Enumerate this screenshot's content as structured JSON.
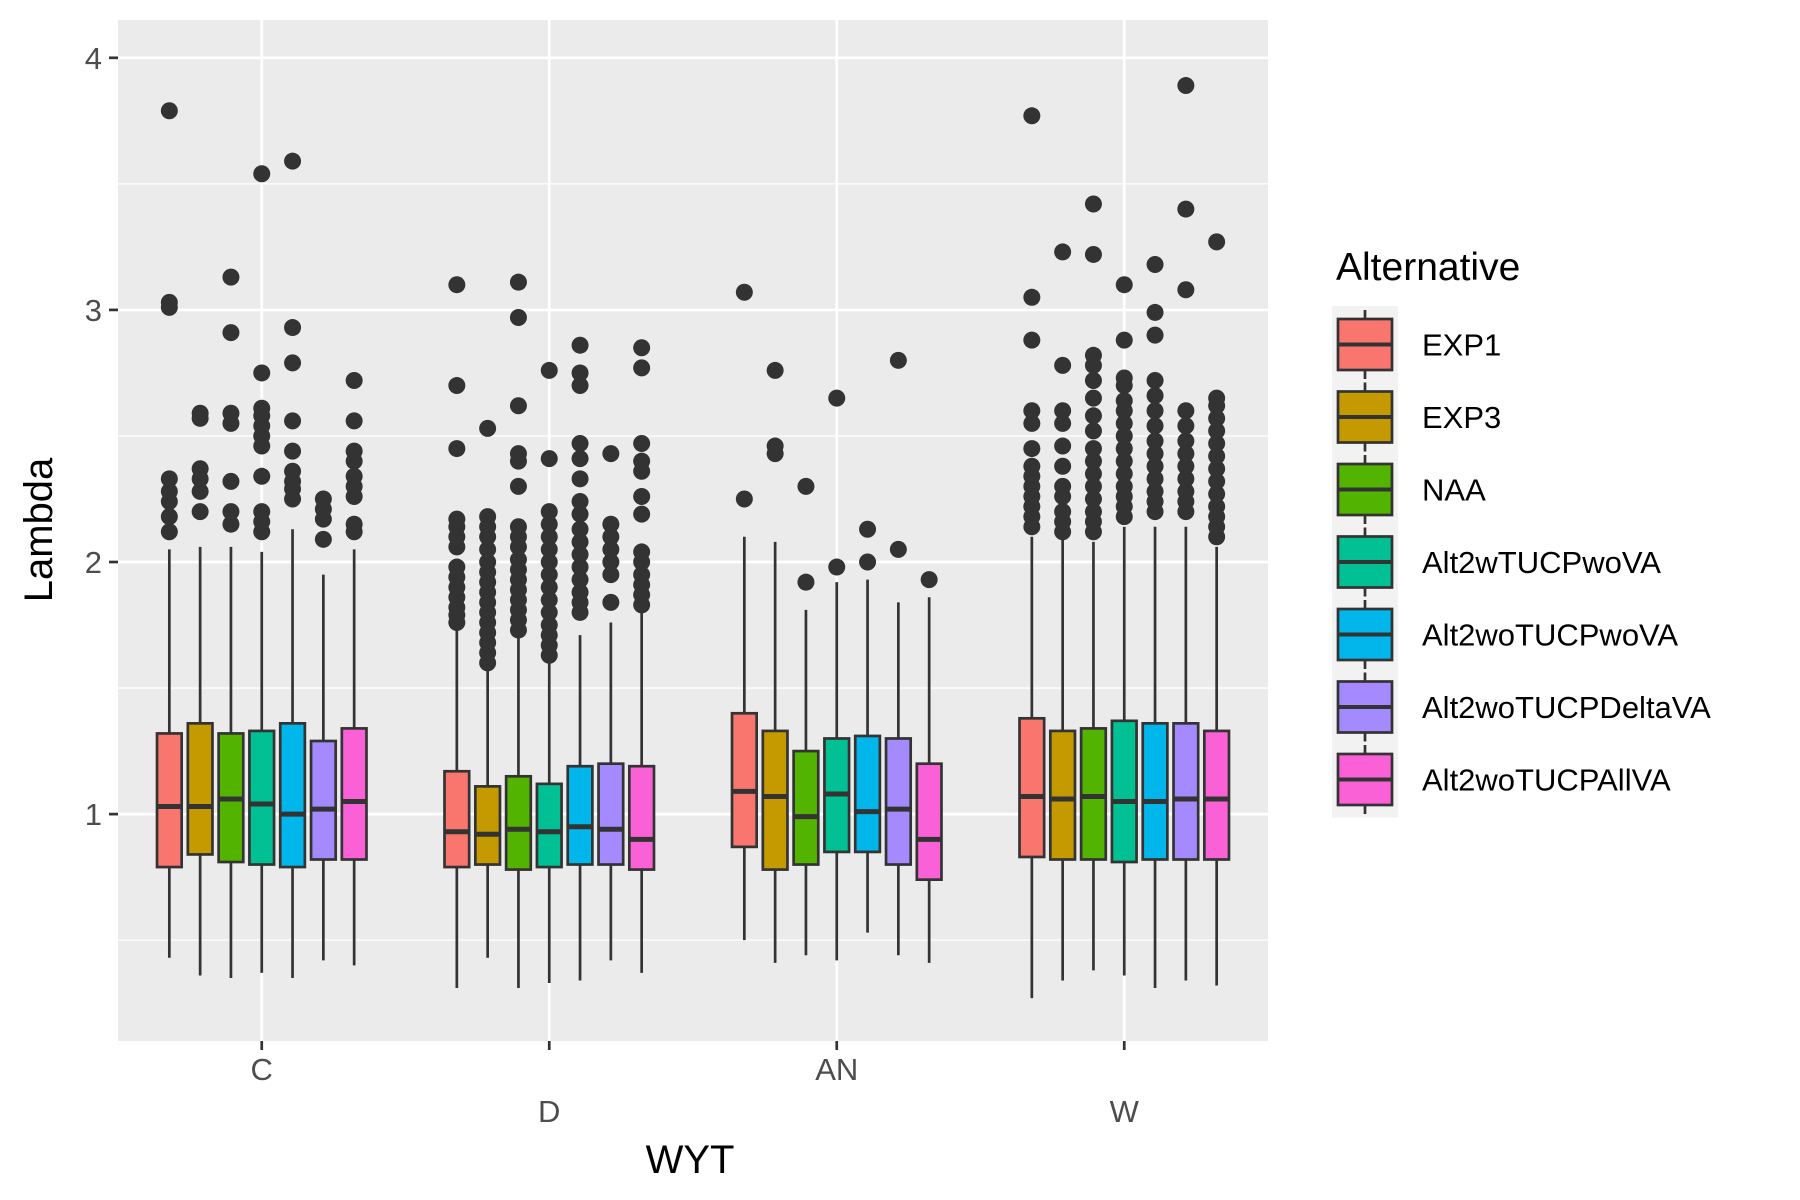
{
  "chart_data": {
    "type": "boxplot",
    "xlabel": "WYT",
    "ylabel": "Lambda",
    "categories": [
      "C",
      "D",
      "AN",
      "W"
    ],
    "ylim": [
      0.1,
      4.15
    ],
    "yticks": [
      1,
      2,
      3,
      4
    ],
    "grid": true,
    "legend": {
      "title": "Alternative",
      "position": "right"
    },
    "series": [
      {
        "name": "EXP1",
        "color": "#F8766D",
        "boxes": [
          {
            "min": 0.43,
            "q1": 0.79,
            "median": 1.03,
            "q3": 1.32,
            "max": 2.05,
            "outliers": [
              2.12,
              2.18,
              2.24,
              2.28,
              2.33,
              3.01,
              3.03,
              3.79
            ]
          },
          {
            "min": 0.31,
            "q1": 0.79,
            "median": 0.93,
            "q3": 1.17,
            "max": 1.73,
            "outliers": [
              1.76,
              1.79,
              1.82,
              1.86,
              1.9,
              1.94,
              1.98,
              2.06,
              2.1,
              2.14,
              2.17,
              2.45,
              2.7,
              3.1
            ]
          },
          {
            "min": 0.5,
            "q1": 0.87,
            "median": 1.09,
            "q3": 1.4,
            "max": 2.1,
            "outliers": [
              2.25,
              3.07
            ]
          },
          {
            "min": 0.27,
            "q1": 0.83,
            "median": 1.07,
            "q3": 1.38,
            "max": 2.1,
            "outliers": [
              2.14,
              2.18,
              2.22,
              2.26,
              2.3,
              2.34,
              2.38,
              2.45,
              2.55,
              2.6,
              2.88,
              3.05,
              3.77
            ]
          }
        ]
      },
      {
        "name": "EXP3",
        "color": "#C49A00",
        "boxes": [
          {
            "min": 0.36,
            "q1": 0.84,
            "median": 1.03,
            "q3": 1.36,
            "max": 2.06,
            "outliers": [
              2.2,
              2.28,
              2.33,
              2.37,
              2.57,
              2.59
            ]
          },
          {
            "min": 0.43,
            "q1": 0.8,
            "median": 0.92,
            "q3": 1.11,
            "max": 1.58,
            "outliers": [
              1.6,
              1.64,
              1.68,
              1.72,
              1.76,
              1.8,
              1.84,
              1.88,
              1.92,
              1.96,
              2.0,
              2.05,
              2.1,
              2.14,
              2.18,
              2.53
            ]
          },
          {
            "min": 0.41,
            "q1": 0.78,
            "median": 1.07,
            "q3": 1.33,
            "max": 2.08,
            "outliers": [
              2.43,
              2.46,
              2.76
            ]
          },
          {
            "min": 0.34,
            "q1": 0.82,
            "median": 1.06,
            "q3": 1.33,
            "max": 2.1,
            "outliers": [
              2.12,
              2.16,
              2.2,
              2.26,
              2.3,
              2.38,
              2.46,
              2.55,
              2.6,
              2.78,
              3.23
            ]
          }
        ]
      },
      {
        "name": "NAA",
        "color": "#53B400",
        "boxes": [
          {
            "min": 0.35,
            "q1": 0.81,
            "median": 1.06,
            "q3": 1.32,
            "max": 2.06,
            "outliers": [
              2.15,
              2.2,
              2.32,
              2.55,
              2.59,
              2.91,
              3.13
            ]
          },
          {
            "min": 0.31,
            "q1": 0.78,
            "median": 0.94,
            "q3": 1.15,
            "max": 1.7,
            "outliers": [
              1.73,
              1.77,
              1.81,
              1.85,
              1.89,
              1.93,
              1.97,
              2.01,
              2.06,
              2.1,
              2.14,
              2.3,
              2.4,
              2.43,
              2.62,
              2.97,
              3.11
            ]
          },
          {
            "min": 0.44,
            "q1": 0.8,
            "median": 0.99,
            "q3": 1.25,
            "max": 1.81,
            "outliers": [
              1.92,
              2.3
            ]
          },
          {
            "min": 0.38,
            "q1": 0.82,
            "median": 1.07,
            "q3": 1.34,
            "max": 2.08,
            "outliers": [
              2.12,
              2.16,
              2.2,
              2.25,
              2.3,
              2.35,
              2.4,
              2.45,
              2.52,
              2.58,
              2.65,
              2.72,
              2.78,
              2.82,
              3.22,
              3.42
            ]
          }
        ]
      },
      {
        "name": "Alt2wTUCPwoVA",
        "color": "#00C094",
        "boxes": [
          {
            "min": 0.37,
            "q1": 0.8,
            "median": 1.04,
            "q3": 1.33,
            "max": 2.04,
            "outliers": [
              2.12,
              2.16,
              2.2,
              2.34,
              2.46,
              2.5,
              2.54,
              2.58,
              2.61,
              2.75,
              3.54
            ]
          },
          {
            "min": 0.33,
            "q1": 0.79,
            "median": 0.93,
            "q3": 1.12,
            "max": 1.6,
            "outliers": [
              1.63,
              1.67,
              1.71,
              1.75,
              1.8,
              1.85,
              1.9,
              1.95,
              2.0,
              2.05,
              2.1,
              2.15,
              2.2,
              2.41,
              2.76
            ]
          },
          {
            "min": 0.42,
            "q1": 0.85,
            "median": 1.08,
            "q3": 1.3,
            "max": 1.92,
            "outliers": [
              1.98,
              2.65
            ]
          },
          {
            "min": 0.36,
            "q1": 0.81,
            "median": 1.05,
            "q3": 1.37,
            "max": 2.14,
            "outliers": [
              2.18,
              2.22,
              2.26,
              2.3,
              2.35,
              2.4,
              2.45,
              2.5,
              2.55,
              2.6,
              2.64,
              2.7,
              2.73,
              2.88,
              3.1
            ]
          }
        ]
      },
      {
        "name": "Alt2woTUCPwoVA",
        "color": "#00B6EB",
        "boxes": [
          {
            "min": 0.35,
            "q1": 0.79,
            "median": 1.0,
            "q3": 1.36,
            "max": 2.13,
            "outliers": [
              2.25,
              2.29,
              2.32,
              2.36,
              2.44,
              2.56,
              2.79,
              2.93,
              3.59
            ]
          },
          {
            "min": 0.34,
            "q1": 0.8,
            "median": 0.95,
            "q3": 1.19,
            "max": 1.71,
            "outliers": [
              1.8,
              1.84,
              1.88,
              1.93,
              1.98,
              2.03,
              2.08,
              2.13,
              2.19,
              2.24,
              2.33,
              2.41,
              2.47,
              2.7,
              2.75,
              2.86
            ]
          },
          {
            "min": 0.53,
            "q1": 0.85,
            "median": 1.01,
            "q3": 1.31,
            "max": 1.93,
            "outliers": [
              2.0,
              2.13
            ]
          },
          {
            "min": 0.31,
            "q1": 0.82,
            "median": 1.05,
            "q3": 1.36,
            "max": 2.14,
            "outliers": [
              2.2,
              2.24,
              2.28,
              2.33,
              2.38,
              2.43,
              2.48,
              2.54,
              2.6,
              2.66,
              2.72,
              2.9,
              2.99,
              3.18
            ]
          }
        ]
      },
      {
        "name": "Alt2woTUCPDeltaVA",
        "color": "#A58AFF",
        "boxes": [
          {
            "min": 0.42,
            "q1": 0.82,
            "median": 1.02,
            "q3": 1.29,
            "max": 1.95,
            "outliers": [
              2.09,
              2.17,
              2.21,
              2.25
            ]
          },
          {
            "min": 0.42,
            "q1": 0.8,
            "median": 0.94,
            "q3": 1.2,
            "max": 1.76,
            "outliers": [
              1.84,
              1.95,
              2.0,
              2.05,
              2.1,
              2.15,
              2.43
            ]
          },
          {
            "min": 0.44,
            "q1": 0.8,
            "median": 1.02,
            "q3": 1.3,
            "max": 1.84,
            "outliers": [
              2.05,
              2.8
            ]
          },
          {
            "min": 0.34,
            "q1": 0.82,
            "median": 1.06,
            "q3": 1.36,
            "max": 2.14,
            "outliers": [
              2.2,
              2.24,
              2.28,
              2.33,
              2.38,
              2.43,
              2.48,
              2.54,
              2.6,
              3.08,
              3.4,
              3.89
            ]
          }
        ]
      },
      {
        "name": "Alt2woTUCPAllVA",
        "color": "#FB61D7",
        "boxes": [
          {
            "min": 0.4,
            "q1": 0.82,
            "median": 1.05,
            "q3": 1.34,
            "max": 2.05,
            "outliers": [
              2.12,
              2.15,
              2.26,
              2.3,
              2.34,
              2.4,
              2.44,
              2.56,
              2.72
            ]
          },
          {
            "min": 0.37,
            "q1": 0.78,
            "median": 0.9,
            "q3": 1.19,
            "max": 1.8,
            "outliers": [
              1.83,
              1.87,
              1.91,
              1.95,
              2.0,
              2.04,
              2.19,
              2.26,
              2.36,
              2.4,
              2.47,
              2.77,
              2.85
            ]
          },
          {
            "min": 0.41,
            "q1": 0.74,
            "median": 0.9,
            "q3": 1.2,
            "max": 1.86,
            "outliers": [
              1.93
            ]
          },
          {
            "min": 0.32,
            "q1": 0.82,
            "median": 1.06,
            "q3": 1.33,
            "max": 2.06,
            "outliers": [
              2.1,
              2.14,
              2.18,
              2.22,
              2.27,
              2.32,
              2.37,
              2.42,
              2.47,
              2.52,
              2.57,
              2.62,
              2.65,
              3.27
            ]
          }
        ]
      }
    ]
  }
}
